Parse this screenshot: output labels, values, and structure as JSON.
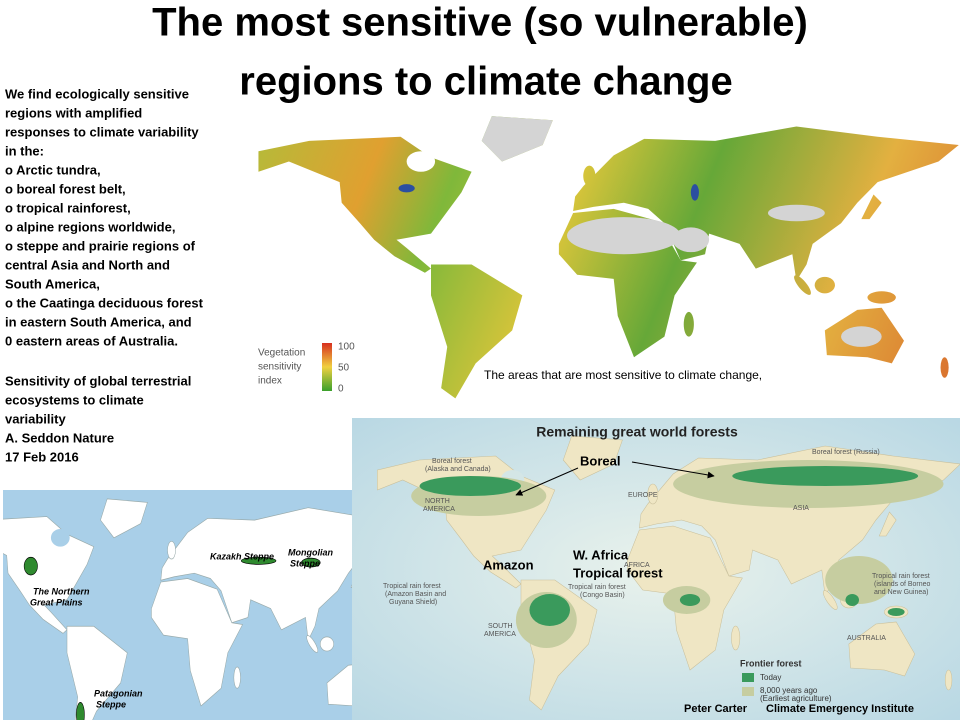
{
  "title": {
    "lines": [
      "The most sensitive (so vulnerable)",
      "regions to climate change"
    ]
  },
  "summary": {
    "lines": [
      "We find ecologically sensitive",
      "regions with amplified",
      "responses to climate variability",
      "in the:",
      "o Arctic tundra,",
      "o boreal forest belt,",
      "o tropical rainforest,",
      "o alpine regions worldwide,",
      "o steppe and prairie regions of",
      "central Asia  and North and",
      "South America,",
      "o the Caatinga deciduous forest",
      "in eastern South America, and",
      "0 eastern areas of Australia."
    ]
  },
  "source": {
    "lines": [
      "Sensitivity of global terrestrial",
      "ecosystems to climate",
      "variability",
      "A. Seddon Nature",
      "17 Feb 2016"
    ]
  },
  "sensitivity_map": {
    "legend_title": [
      "Vegetation",
      "sensitivity",
      "index"
    ],
    "legend_ticks": [
      100,
      50,
      0
    ],
    "caption": "The areas that are most sensitive to climate change,"
  },
  "forest_map": {
    "title": "Remaining great world forests",
    "callouts": [
      "Boreal",
      "Amazon",
      "W. Africa",
      "Tropical forest"
    ],
    "labels": [
      "Boreal forest",
      "(Alaska and Canada)",
      "Boreal forest (Russia)",
      "NORTH",
      "AMERICA",
      "EUROPE",
      "ASIA",
      "AFRICA",
      "SOUTH",
      "AMERICA",
      "AUSTRALIA",
      "Tropical rain forest",
      "(Amazon Basin and",
      "Guyana Shield)",
      "Tropical rain forest",
      "(Congo Basin)",
      "Tropical rain forest",
      "(islands of Borneo",
      "and New Guinea)"
    ],
    "legend": {
      "title": "Frontier forest",
      "items": [
        "Today",
        "8,000 years ago",
        "(Earliest agriculture)"
      ]
    }
  },
  "credits": [
    "Peter Carter",
    "Climate Emergency Institute"
  ],
  "steppe_map": {
    "labels": [
      "Kazakh Steppe",
      "Mongolian",
      "Steppe",
      "The Northern",
      "Great Plains",
      "Patagonian",
      "Steppe"
    ]
  }
}
